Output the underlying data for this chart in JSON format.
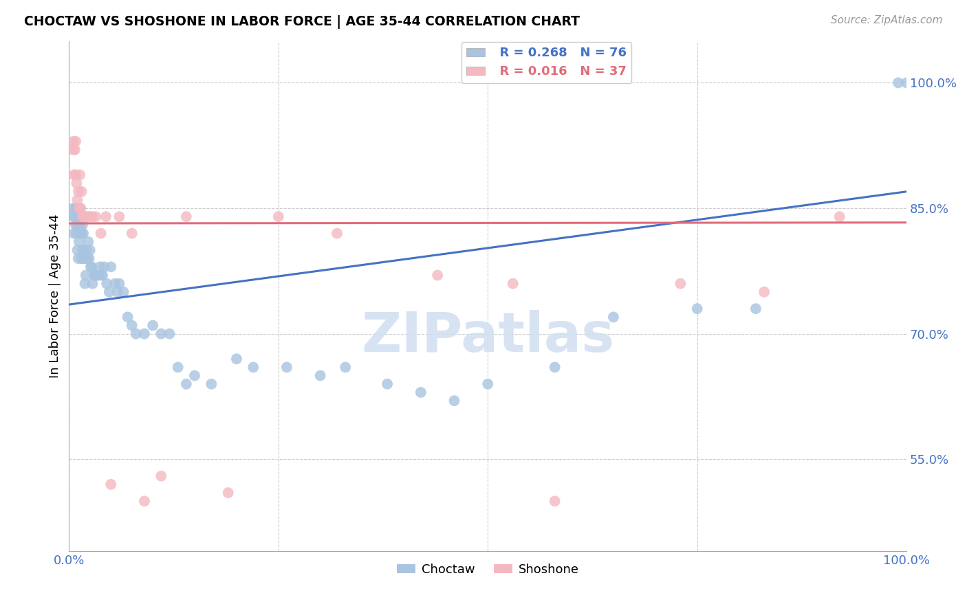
{
  "title": "CHOCTAW VS SHOSHONE IN LABOR FORCE | AGE 35-44 CORRELATION CHART",
  "source": "Source: ZipAtlas.com",
  "ylabel": "In Labor Force | Age 35-44",
  "ytick_values": [
    0.55,
    0.7,
    0.85,
    1.0
  ],
  "xlim": [
    0.0,
    1.0
  ],
  "ylim": [
    0.44,
    1.05
  ],
  "choctaw_color": "#a8c4e0",
  "shoshone_color": "#f4b8c1",
  "choctaw_line_color": "#4472c4",
  "shoshone_line_color": "#e06c7a",
  "background_color": "#ffffff",
  "grid_color": "#cccccc",
  "watermark_color": "#d0dff0",
  "choctaw_x": [
    0.005,
    0.005,
    0.006,
    0.007,
    0.008,
    0.008,
    0.009,
    0.009,
    0.01,
    0.01,
    0.011,
    0.011,
    0.012,
    0.012,
    0.013,
    0.013,
    0.014,
    0.015,
    0.015,
    0.016,
    0.016,
    0.017,
    0.017,
    0.018,
    0.019,
    0.019,
    0.02,
    0.021,
    0.022,
    0.023,
    0.024,
    0.025,
    0.026,
    0.027,
    0.028,
    0.03,
    0.031,
    0.033,
    0.035,
    0.037,
    0.038,
    0.04,
    0.042,
    0.045,
    0.048,
    0.05,
    0.055,
    0.058,
    0.06,
    0.065,
    0.07,
    0.075,
    0.08,
    0.09,
    0.1,
    0.11,
    0.12,
    0.13,
    0.14,
    0.15,
    0.17,
    0.2,
    0.22,
    0.26,
    0.3,
    0.33,
    0.38,
    0.42,
    0.46,
    0.5,
    0.58,
    0.65,
    0.75,
    0.82,
    0.99,
    1.0
  ],
  "choctaw_y": [
    0.84,
    0.85,
    0.82,
    0.84,
    0.83,
    0.85,
    0.82,
    0.85,
    0.8,
    0.83,
    0.83,
    0.79,
    0.84,
    0.81,
    0.83,
    0.85,
    0.82,
    0.79,
    0.82,
    0.8,
    0.83,
    0.79,
    0.82,
    0.8,
    0.76,
    0.79,
    0.77,
    0.8,
    0.79,
    0.81,
    0.79,
    0.8,
    0.78,
    0.78,
    0.76,
    0.77,
    0.77,
    0.77,
    0.77,
    0.78,
    0.77,
    0.77,
    0.78,
    0.76,
    0.75,
    0.78,
    0.76,
    0.75,
    0.76,
    0.75,
    0.72,
    0.71,
    0.7,
    0.7,
    0.71,
    0.7,
    0.7,
    0.66,
    0.64,
    0.65,
    0.64,
    0.67,
    0.66,
    0.66,
    0.65,
    0.66,
    0.64,
    0.63,
    0.62,
    0.64,
    0.66,
    0.72,
    0.73,
    0.73,
    1.0,
    1.0
  ],
  "shoshone_x": [
    0.005,
    0.005,
    0.006,
    0.007,
    0.008,
    0.008,
    0.009,
    0.01,
    0.011,
    0.012,
    0.013,
    0.014,
    0.015,
    0.016,
    0.018,
    0.02,
    0.022,
    0.025,
    0.028,
    0.032,
    0.038,
    0.044,
    0.05,
    0.06,
    0.075,
    0.09,
    0.11,
    0.14,
    0.19,
    0.25,
    0.32,
    0.44,
    0.53,
    0.58,
    0.73,
    0.83,
    0.92
  ],
  "shoshone_y": [
    0.93,
    0.92,
    0.89,
    0.92,
    0.89,
    0.93,
    0.88,
    0.86,
    0.87,
    0.85,
    0.89,
    0.85,
    0.87,
    0.84,
    0.84,
    0.84,
    0.84,
    0.84,
    0.84,
    0.84,
    0.82,
    0.84,
    0.52,
    0.84,
    0.82,
    0.5,
    0.53,
    0.84,
    0.51,
    0.84,
    0.82,
    0.77,
    0.76,
    0.5,
    0.76,
    0.75,
    0.84
  ],
  "choctaw_line_y0": 0.735,
  "choctaw_line_y1": 0.87,
  "shoshone_line_y0": 0.832,
  "shoshone_line_y1": 0.833
}
